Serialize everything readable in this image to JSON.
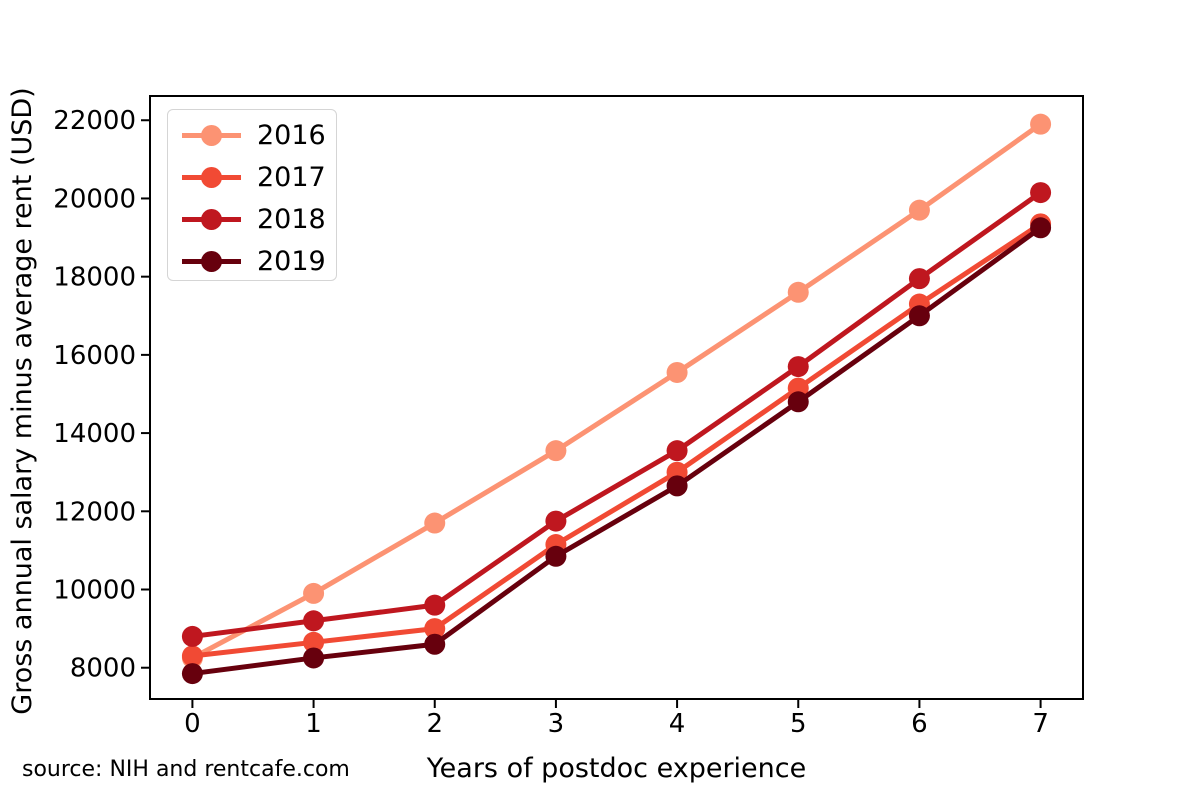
{
  "figure": {
    "y_axis_label": "Gross annual salary minus average rent (USD)",
    "x_axis_label": "Years of postdoc experience",
    "source_note": "source: NIH and rentcafe.com"
  },
  "chart_data": {
    "type": "line",
    "title": "",
    "xlabel": "Years of postdoc experience",
    "ylabel": "Gross annual salary minus average rent (USD)",
    "annotation": "source: NIH and rentcafe.com",
    "x": [
      0,
      1,
      2,
      3,
      4,
      5,
      6,
      7
    ],
    "x_tick_labels": [
      "0",
      "1",
      "2",
      "3",
      "4",
      "5",
      "6",
      "7"
    ],
    "y_ticks": [
      8000,
      10000,
      12000,
      14000,
      16000,
      18000,
      20000,
      22000
    ],
    "y_tick_labels": [
      "8000",
      "10000",
      "12000",
      "14000",
      "16000",
      "18000",
      "20000",
      "22000"
    ],
    "xlim": [
      -0.35,
      7.35
    ],
    "ylim": [
      7200,
      22620
    ],
    "grid": false,
    "legend_position": "upper left",
    "marker": "circle",
    "series": [
      {
        "name": "2016",
        "color": "#fc9373",
        "values": [
          8250,
          9900,
          11700,
          13550,
          15550,
          17600,
          19700,
          21900
        ]
      },
      {
        "name": "2017",
        "color": "#f14a34",
        "values": [
          8300,
          8650,
          9000,
          11150,
          13000,
          15150,
          17300,
          19350
        ]
      },
      {
        "name": "2018",
        "color": "#bf171f",
        "values": [
          8800,
          9200,
          9600,
          11750,
          13550,
          15700,
          17950,
          20150
        ]
      },
      {
        "name": "2019",
        "color": "#67000d",
        "values": [
          7850,
          8250,
          8600,
          10850,
          12650,
          14800,
          17000,
          19250
        ]
      }
    ]
  }
}
